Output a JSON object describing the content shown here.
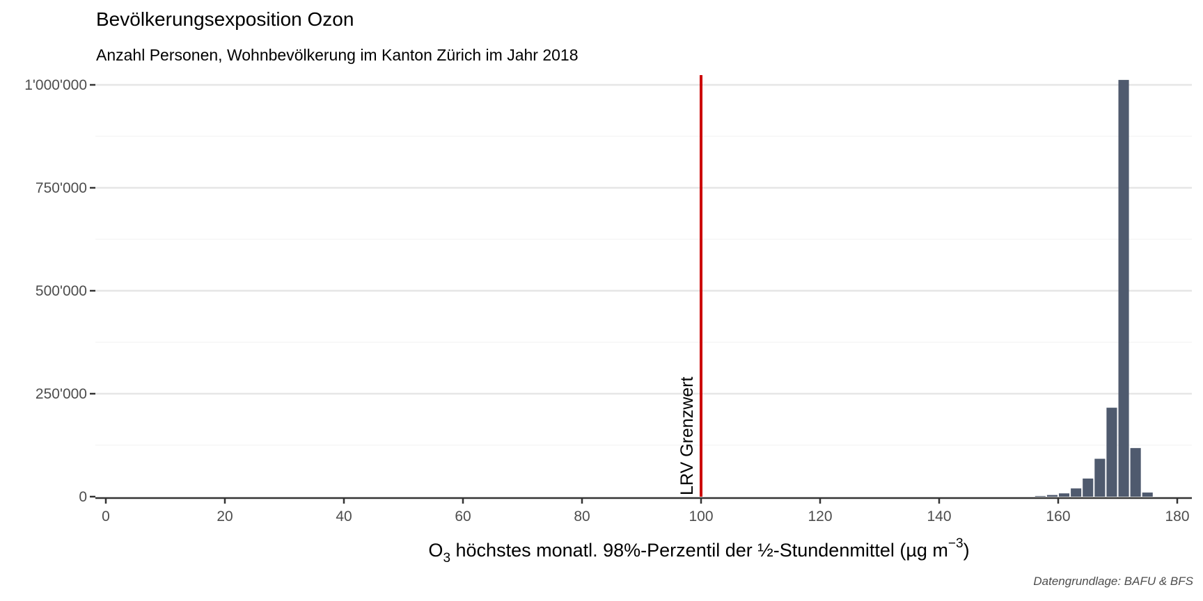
{
  "chart_data": {
    "type": "bar",
    "title": "Bevölkerungsexposition Ozon",
    "subtitle": "Anzahl Personen, Wohnbevölkerung im Kanton Zürich im Jahr 2018",
    "caption": "Datengrundlage: BAFU & BFS",
    "xlabel": {
      "main": "O",
      "sub": "3",
      "middle": " höchstes monatl. 98%-Perzentil der ½-Stundenmittel (µg m",
      "sup": "−3",
      "end": ")"
    },
    "ylabel": "",
    "xlim": [
      0,
      180
    ],
    "ylim": [
      0,
      1000000
    ],
    "x_ticks": [
      0,
      20,
      40,
      60,
      80,
      100,
      120,
      140,
      160,
      180
    ],
    "y_ticks": [
      0,
      250000,
      500000,
      750000,
      1000000
    ],
    "y_tick_labels": [
      "0",
      "250'000",
      "500'000",
      "750'000",
      "1'000'000"
    ],
    "grid": true,
    "bar_color": "#4f5a6e",
    "bin_width": 2,
    "bins": [
      {
        "x": 157,
        "value": 1500
      },
      {
        "x": 159,
        "value": 4000
      },
      {
        "x": 161,
        "value": 8000
      },
      {
        "x": 163,
        "value": 20000
      },
      {
        "x": 165,
        "value": 44000
      },
      {
        "x": 167,
        "value": 92000
      },
      {
        "x": 169,
        "value": 216000
      },
      {
        "x": 171,
        "value": 1012000
      },
      {
        "x": 173,
        "value": 118000
      },
      {
        "x": 175,
        "value": 10000
      }
    ],
    "reference_line": {
      "x": 100,
      "label": "LRV Grenzwert",
      "color": "#cc0000"
    }
  }
}
